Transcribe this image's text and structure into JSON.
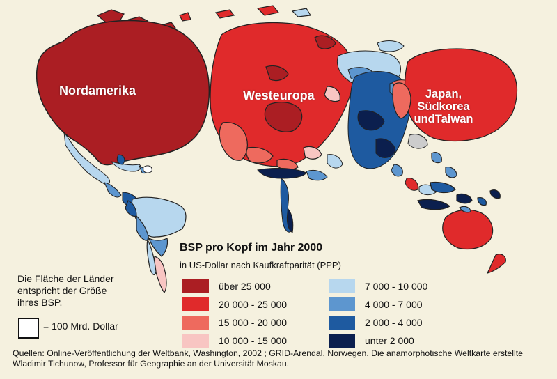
{
  "regions": {
    "north_america": "Nordamerika",
    "western_europe": "Westeuropa",
    "east_asia": [
      "Japan,",
      "Südkorea",
      "undTaiwan"
    ]
  },
  "legend": {
    "title": "BSP pro Kopf im Jahr 2000",
    "subtitle": "in US-Dollar nach Kaufkraftparität (PPP)",
    "left_items": [
      {
        "label": "über 25 000",
        "color": "#ab1e23"
      },
      {
        "label": "20 000 - 25 000",
        "color": "#e02a2b"
      },
      {
        "label": "15 000 - 20 000",
        "color": "#ee6a5e"
      },
      {
        "label": "10 000 - 15 000",
        "color": "#f8c5c2"
      }
    ],
    "right_items": [
      {
        "label": "7 000 - 10 000",
        "color": "#b7d7ee"
      },
      {
        "label": "4 000 - 7 000",
        "color": "#5d96cf"
      },
      {
        "label": "2 000 - 4 000",
        "color": "#1e5aa0"
      },
      {
        "label": "unter 2 000",
        "color": "#0b1f4e"
      }
    ]
  },
  "area_note": [
    "Die Fläche der Länder",
    "entspricht der Größe",
    "ihres BSP."
  ],
  "scale": "= 100 Mrd. Dollar",
  "sources": [
    "Quellen: Online-Veröffentlichung der Weltbank, Washington, 2002 ; GRID-Arendal, Norwegen. Die anamorphotische Weltkarte erstellte",
    "Wladimir Tichunow, Professor für Geographie an der Universität Moskau."
  ]
}
